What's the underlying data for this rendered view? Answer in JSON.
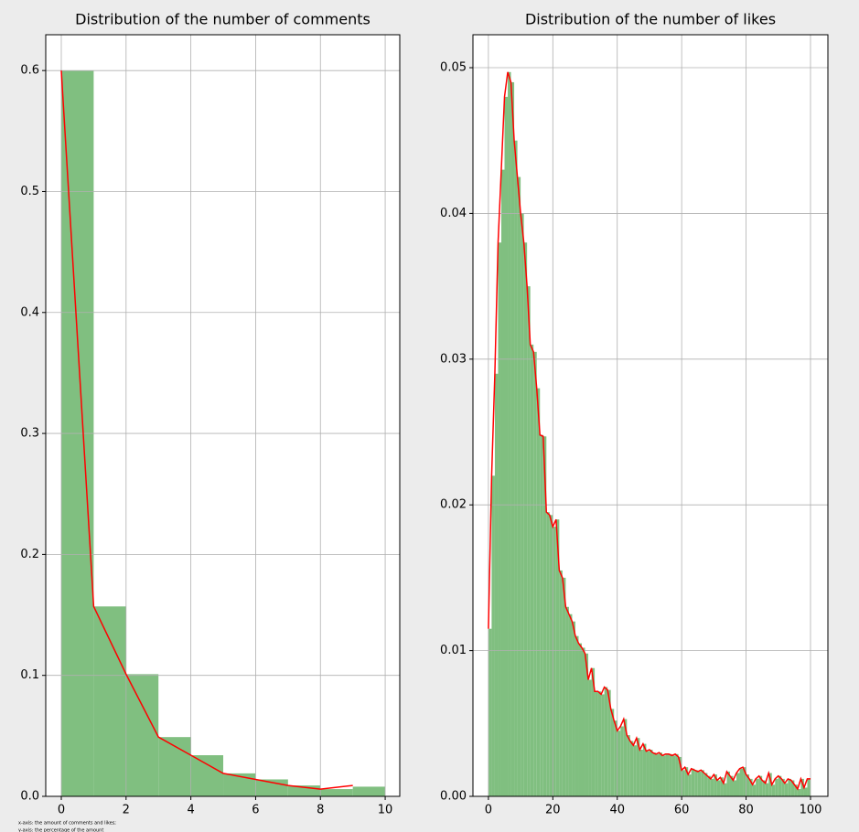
{
  "chart_data": [
    {
      "type": "histogram",
      "title": "Distribution of the number of comments",
      "bins": [
        0,
        1,
        2,
        3,
        4,
        5,
        6,
        7,
        8,
        9,
        10
      ],
      "values": [
        0.6,
        0.157,
        0.101,
        0.049,
        0.034,
        0.019,
        0.014,
        0.009,
        0.006,
        0.008
      ],
      "color": "#80bf80",
      "line_x": [
        0,
        1,
        2,
        3,
        4,
        5,
        6,
        7,
        8,
        9
      ],
      "line_values": [
        0.6,
        0.157,
        0.101,
        0.049,
        0.034,
        0.019,
        0.014,
        0.009,
        0.006,
        0.009
      ],
      "line_color": "#ff0000",
      "xlim": [
        -0.48,
        10.45
      ],
      "ylim": [
        0,
        0.6296
      ],
      "xticks": [
        0,
        2,
        4,
        6,
        8,
        10
      ],
      "yticks": [
        {
          "value": 0,
          "label": "0.0"
        },
        0.1,
        0.2,
        0.3,
        0.4,
        0.5,
        0.6
      ],
      "grid": true,
      "annotations": [
        "x-axis: the amount of comments and likes;",
        "y-axis: the percentage of the amount"
      ]
    },
    {
      "type": "histogram",
      "title": "Distribution of the number of likes",
      "bins": [
        0,
        1,
        2,
        3,
        4,
        5,
        6,
        7,
        8,
        9,
        10,
        11,
        12,
        13,
        14,
        15,
        16,
        17,
        18,
        19,
        20,
        21,
        22,
        23,
        24,
        25,
        26,
        27,
        28,
        29,
        30,
        31,
        32,
        33,
        34,
        35,
        36,
        37,
        38,
        39,
        40,
        41,
        42,
        43,
        44,
        45,
        46,
        47,
        48,
        49,
        50,
        51,
        52,
        53,
        54,
        55,
        56,
        57,
        58,
        59,
        60,
        61,
        62,
        63,
        64,
        65,
        66,
        67,
        68,
        69,
        70,
        71,
        72,
        73,
        74,
        75,
        76,
        77,
        78,
        79,
        80,
        81,
        82,
        83,
        84,
        85,
        86,
        87,
        88,
        89,
        90,
        91,
        92,
        93,
        94,
        95,
        96,
        97,
        98,
        99,
        100
      ],
      "values": [
        0.0115,
        0.022,
        0.029,
        0.038,
        0.043,
        0.048,
        0.0497,
        0.049,
        0.045,
        0.0425,
        0.04,
        0.038,
        0.035,
        0.031,
        0.0305,
        0.028,
        0.0248,
        0.0247,
        0.0195,
        0.0193,
        0.0185,
        0.019,
        0.0155,
        0.015,
        0.013,
        0.0125,
        0.012,
        0.011,
        0.0105,
        0.0102,
        0.0098,
        0.008,
        0.0088,
        0.0072,
        0.0072,
        0.007,
        0.0075,
        0.0073,
        0.006,
        0.0052,
        0.0045,
        0.0048,
        0.0053,
        0.0042,
        0.0038,
        0.0035,
        0.004,
        0.0032,
        0.0036,
        0.0031,
        0.0032,
        0.003,
        0.0029,
        0.003,
        0.0028,
        0.0029,
        0.0029,
        0.0028,
        0.0029,
        0.0027,
        0.0018,
        0.002,
        0.0015,
        0.0019,
        0.0018,
        0.0017,
        0.0018,
        0.0016,
        0.0014,
        0.0012,
        0.0015,
        0.0011,
        0.0013,
        0.0009,
        0.0017,
        0.0014,
        0.0011,
        0.0016,
        0.0019,
        0.002,
        0.0015,
        0.0012,
        0.0008,
        0.0012,
        0.0014,
        0.0011,
        0.0009,
        0.0016,
        0.0008,
        0.0012,
        0.0014,
        0.0012,
        0.0009,
        0.0012,
        0.0011,
        0.0008,
        0.0005,
        0.0012,
        0.0006,
        0.0012
      ],
      "color": "#80bf80",
      "line_x": [
        0,
        1,
        2,
        3,
        4,
        5,
        6,
        7,
        8,
        9,
        10,
        11,
        12,
        13,
        14,
        15,
        16,
        17,
        18,
        19,
        20,
        21,
        22,
        23,
        24,
        25,
        26,
        27,
        28,
        29,
        30,
        31,
        32,
        33,
        34,
        35,
        36,
        37,
        38,
        39,
        40,
        41,
        42,
        43,
        44,
        45,
        46,
        47,
        48,
        49,
        50,
        51,
        52,
        53,
        54,
        55,
        56,
        57,
        58,
        59,
        60,
        61,
        62,
        63,
        64,
        65,
        66,
        67,
        68,
        69,
        70,
        71,
        72,
        73,
        74,
        75,
        76,
        77,
        78,
        79,
        80,
        81,
        82,
        83,
        84,
        85,
        86,
        87,
        88,
        89,
        90,
        91,
        92,
        93,
        94,
        95,
        96,
        97,
        98,
        99,
        100
      ],
      "line_values": [
        0.0115,
        0.022,
        0.029,
        0.038,
        0.043,
        0.048,
        0.0497,
        0.049,
        0.045,
        0.0425,
        0.04,
        0.038,
        0.035,
        0.031,
        0.0305,
        0.028,
        0.0248,
        0.0247,
        0.0195,
        0.0193,
        0.0185,
        0.019,
        0.0155,
        0.015,
        0.013,
        0.0125,
        0.012,
        0.011,
        0.0105,
        0.0102,
        0.0098,
        0.008,
        0.0088,
        0.0072,
        0.0072,
        0.007,
        0.0075,
        0.0073,
        0.006,
        0.0052,
        0.0045,
        0.0048,
        0.0053,
        0.0042,
        0.0038,
        0.0035,
        0.004,
        0.0032,
        0.0036,
        0.0031,
        0.0032,
        0.003,
        0.0029,
        0.003,
        0.0028,
        0.0029,
        0.0029,
        0.0028,
        0.0029,
        0.0027,
        0.0018,
        0.002,
        0.0015,
        0.0019,
        0.0018,
        0.0017,
        0.0018,
        0.0016,
        0.0014,
        0.0012,
        0.0015,
        0.0011,
        0.0013,
        0.0009,
        0.0017,
        0.0014,
        0.0011,
        0.0016,
        0.0019,
        0.002,
        0.0015,
        0.0012,
        0.0008,
        0.0012,
        0.0014,
        0.0011,
        0.0009,
        0.0016,
        0.0008,
        0.0012,
        0.0014,
        0.0012,
        0.0009,
        0.0012,
        0.0011,
        0.0008,
        0.0005,
        0.0012,
        0.0006,
        0.0012,
        0.0012
      ],
      "line_color": "#ff0000",
      "xlim": [
        -4.8,
        105.4
      ],
      "ylim": [
        0,
        0.05226
      ],
      "xticks": [
        0,
        20,
        40,
        60,
        80,
        100
      ],
      "yticks": [
        {
          "value": 0,
          "label": "0.00"
        },
        {
          "value": 0.01,
          "label": "0.01"
        },
        {
          "value": 0.02,
          "label": "0.02"
        },
        {
          "value": 0.03,
          "label": "0.03"
        },
        {
          "value": 0.04,
          "label": "0.04"
        },
        {
          "value": 0.05,
          "label": "0.05"
        }
      ],
      "grid": true
    }
  ]
}
